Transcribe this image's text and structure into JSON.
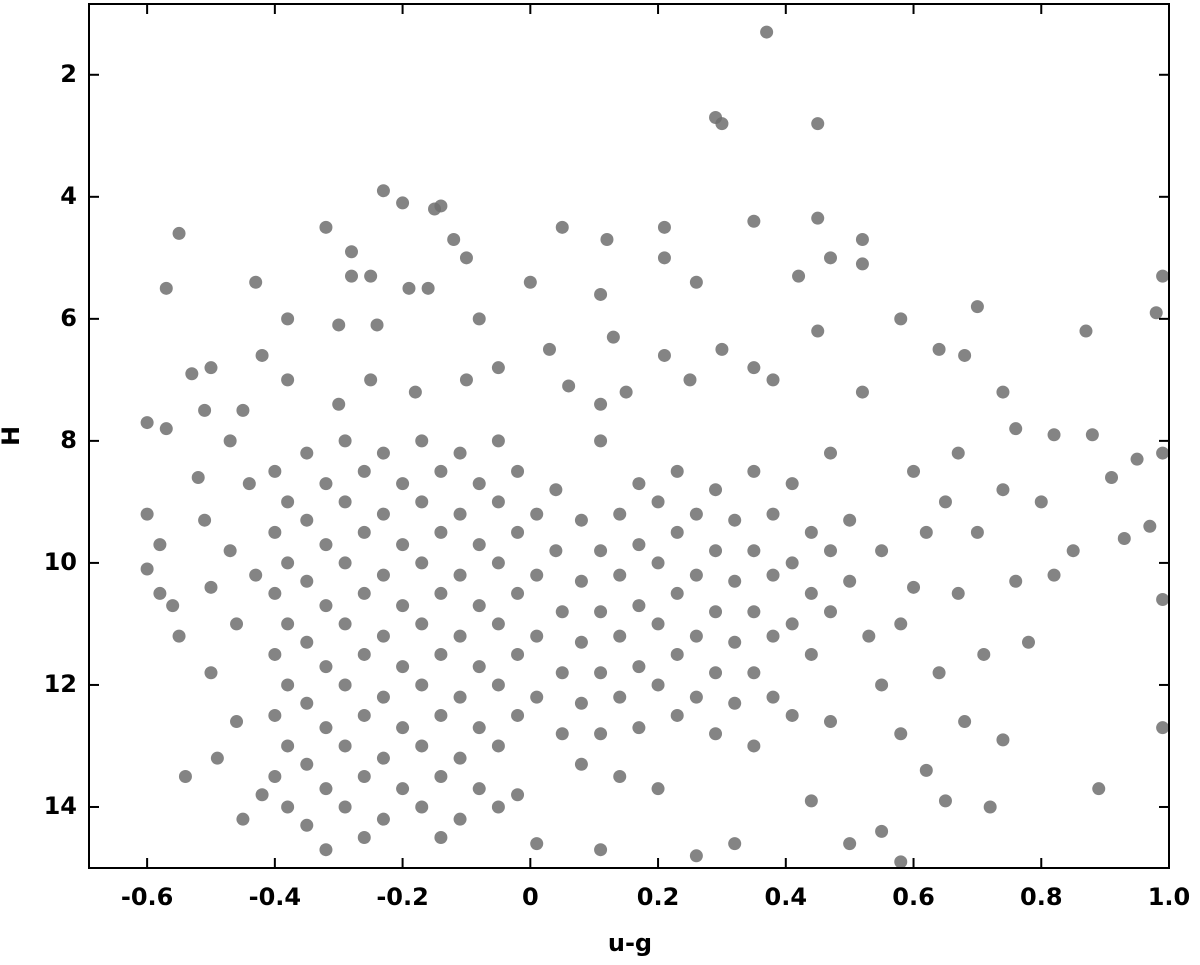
{
  "chart_data": {
    "type": "scatter",
    "xlabel": "u-g",
    "ylabel": "H",
    "xlim": [
      -0.691,
      1.0
    ],
    "ylim": [
      15,
      0.84
    ],
    "xticks": [
      -0.6,
      -0.4,
      -0.2,
      0,
      0.2,
      0.4,
      0.6,
      0.8,
      {
        "value": 1.0,
        "label": "1.0"
      }
    ],
    "yticks": [
      2,
      4,
      6,
      8,
      10,
      12,
      14
    ],
    "series": [
      {
        "color": "#6e6e6e",
        "x": [
          0.37,
          0.29,
          0.3,
          0.45,
          -0.23,
          -0.2,
          -0.15,
          -0.14,
          0.35,
          0.45,
          -0.55,
          -0.32,
          -0.12,
          0.12,
          0.21,
          0.05,
          0.52,
          -0.28,
          -0.1,
          0.21,
          -0.57,
          -0.43,
          -0.28,
          -0.25,
          -0.19,
          -0.16,
          0.0,
          0.11,
          0.26,
          0.42,
          0.47,
          0.52,
          0.99,
          0.98,
          0.87,
          0.7,
          0.58,
          0.45,
          0.3,
          0.13,
          -0.53,
          -0.5,
          -0.42,
          -0.38,
          -0.3,
          -0.24,
          -0.08,
          0.03,
          0.21,
          0.64,
          -0.6,
          -0.57,
          -0.51,
          -0.45,
          -0.38,
          -0.3,
          -0.25,
          -0.18,
          -0.1,
          -0.05,
          0.06,
          0.11,
          0.15,
          0.25,
          0.35,
          0.38,
          0.52,
          0.68,
          0.74,
          0.76,
          -0.6,
          -0.58,
          -0.6,
          -0.58,
          -0.56,
          -0.55,
          -0.54,
          -0.52,
          -0.51,
          -0.5,
          -0.5,
          -0.49,
          -0.47,
          -0.47,
          -0.46,
          -0.46,
          -0.45,
          -0.44,
          -0.43,
          -0.42,
          -0.4,
          -0.4,
          -0.4,
          -0.4,
          -0.4,
          -0.4,
          -0.38,
          -0.38,
          -0.38,
          -0.38,
          -0.38,
          -0.38,
          -0.35,
          -0.35,
          -0.35,
          -0.35,
          -0.35,
          -0.35,
          -0.35,
          -0.32,
          -0.32,
          -0.32,
          -0.32,
          -0.32,
          -0.32,
          -0.32,
          -0.29,
          -0.29,
          -0.29,
          -0.29,
          -0.29,
          -0.29,
          -0.29,
          -0.26,
          -0.26,
          -0.26,
          -0.26,
          -0.26,
          -0.26,
          -0.26,
          -0.23,
          -0.23,
          -0.23,
          -0.23,
          -0.23,
          -0.23,
          -0.23,
          -0.2,
          -0.2,
          -0.2,
          -0.2,
          -0.2,
          -0.2,
          -0.17,
          -0.17,
          -0.17,
          -0.17,
          -0.17,
          -0.17,
          -0.17,
          -0.14,
          -0.14,
          -0.14,
          -0.14,
          -0.14,
          -0.14,
          -0.14,
          -0.11,
          -0.11,
          -0.11,
          -0.11,
          -0.11,
          -0.11,
          -0.11,
          -0.08,
          -0.08,
          -0.08,
          -0.08,
          -0.08,
          -0.08,
          -0.05,
          -0.05,
          -0.05,
          -0.05,
          -0.05,
          -0.05,
          -0.05,
          -0.02,
          -0.02,
          -0.02,
          -0.02,
          -0.02,
          -0.02,
          0.01,
          0.01,
          0.01,
          0.01,
          0.01,
          0.04,
          0.04,
          0.05,
          0.05,
          0.05,
          0.08,
          0.08,
          0.08,
          0.08,
          0.08,
          0.11,
          0.11,
          0.11,
          0.11,
          0.11,
          0.11,
          0.14,
          0.14,
          0.14,
          0.14,
          0.14,
          0.17,
          0.17,
          0.17,
          0.17,
          0.17,
          0.2,
          0.2,
          0.2,
          0.2,
          0.2,
          0.23,
          0.23,
          0.23,
          0.23,
          0.23,
          0.26,
          0.26,
          0.26,
          0.26,
          0.26,
          0.29,
          0.29,
          0.29,
          0.29,
          0.29,
          0.32,
          0.32,
          0.32,
          0.32,
          0.32,
          0.35,
          0.35,
          0.35,
          0.35,
          0.35,
          0.38,
          0.38,
          0.38,
          0.38,
          0.41,
          0.41,
          0.41,
          0.41,
          0.44,
          0.44,
          0.44,
          0.44,
          0.47,
          0.47,
          0.47,
          0.47,
          0.5,
          0.5,
          0.5,
          0.53,
          0.55,
          0.55,
          0.55,
          0.58,
          0.58,
          0.58,
          0.6,
          0.6,
          0.62,
          0.62,
          0.64,
          0.65,
          0.65,
          0.67,
          0.67,
          0.68,
          0.7,
          0.71,
          0.72,
          0.74,
          0.74,
          0.76,
          0.78,
          0.8,
          0.82,
          0.85,
          0.88,
          0.89,
          0.91,
          0.93,
          0.95,
          0.97,
          0.99,
          0.99,
          0.99,
          0.82
        ],
        "y": [
          1.3,
          2.7,
          2.8,
          2.8,
          3.9,
          4.1,
          4.2,
          4.15,
          4.4,
          4.35,
          4.6,
          4.5,
          4.7,
          4.7,
          4.5,
          4.5,
          4.7,
          4.9,
          5.0,
          5.0,
          5.5,
          5.4,
          5.3,
          5.3,
          5.5,
          5.5,
          5.4,
          5.6,
          5.4,
          5.3,
          5.0,
          5.1,
          5.3,
          5.9,
          6.2,
          5.8,
          6.0,
          6.2,
          6.5,
          6.3,
          6.9,
          6.8,
          6.6,
          6.0,
          6.1,
          6.1,
          6.0,
          6.5,
          6.6,
          6.5,
          7.7,
          7.8,
          7.5,
          7.5,
          7.0,
          7.4,
          7.0,
          7.2,
          7.0,
          6.8,
          7.1,
          7.4,
          7.2,
          7.0,
          6.8,
          7.0,
          7.2,
          6.6,
          7.2,
          7.8,
          9.2,
          9.7,
          10.1,
          10.5,
          10.7,
          11.2,
          13.5,
          8.6,
          9.3,
          10.4,
          11.8,
          13.2,
          8.0,
          9.8,
          11.0,
          12.6,
          14.2,
          8.7,
          10.2,
          13.8,
          8.5,
          9.5,
          10.5,
          11.5,
          12.5,
          13.5,
          9.0,
          10.0,
          11.0,
          12.0,
          13.0,
          14.0,
          8.2,
          9.3,
          10.3,
          11.3,
          12.3,
          13.3,
          14.3,
          8.7,
          9.7,
          10.7,
          11.7,
          12.7,
          13.7,
          14.7,
          8.0,
          9.0,
          10.0,
          11.0,
          12.0,
          13.0,
          14.0,
          8.5,
          9.5,
          10.5,
          11.5,
          12.5,
          13.5,
          14.5,
          8.2,
          9.2,
          10.2,
          11.2,
          12.2,
          13.2,
          14.2,
          8.7,
          9.7,
          10.7,
          11.7,
          12.7,
          13.7,
          8.0,
          9.0,
          10.0,
          11.0,
          12.0,
          13.0,
          14.0,
          8.5,
          9.5,
          10.5,
          11.5,
          12.5,
          13.5,
          14.5,
          8.2,
          9.2,
          10.2,
          11.2,
          12.2,
          13.2,
          14.2,
          8.7,
          9.7,
          10.7,
          11.7,
          12.7,
          13.7,
          8.0,
          9.0,
          10.0,
          11.0,
          12.0,
          13.0,
          14.0,
          8.5,
          9.5,
          10.5,
          11.5,
          12.5,
          13.8,
          9.2,
          10.2,
          11.2,
          12.2,
          14.6,
          8.8,
          9.8,
          10.8,
          11.8,
          12.8,
          9.3,
          10.3,
          11.3,
          12.3,
          13.3,
          8.0,
          9.8,
          10.8,
          11.8,
          12.8,
          14.7,
          9.2,
          10.2,
          11.2,
          12.2,
          13.5,
          8.7,
          9.7,
          10.7,
          11.7,
          12.7,
          9.0,
          10.0,
          11.0,
          12.0,
          13.7,
          8.5,
          9.5,
          10.5,
          11.5,
          12.5,
          9.2,
          10.2,
          11.2,
          12.2,
          14.8,
          8.8,
          9.8,
          10.8,
          11.8,
          12.8,
          9.3,
          10.3,
          11.3,
          12.3,
          14.6,
          8.5,
          9.8,
          10.8,
          11.8,
          13.0,
          9.2,
          10.2,
          11.2,
          12.2,
          8.7,
          10.0,
          11.0,
          12.5,
          9.5,
          10.5,
          11.5,
          13.9,
          8.2,
          9.8,
          10.8,
          12.6,
          9.3,
          10.3,
          14.6,
          11.2,
          9.8,
          12.0,
          14.4,
          11.0,
          12.8,
          14.9,
          8.5,
          10.4,
          9.5,
          13.4,
          11.8,
          9.0,
          13.9,
          8.2,
          10.5,
          12.6,
          9.5,
          11.5,
          14.0,
          8.8,
          12.9,
          10.3,
          11.3,
          9.0,
          10.2,
          9.8,
          7.9,
          13.7,
          8.6,
          9.6,
          8.3,
          9.4,
          10.6,
          12.7,
          8.2,
          7.9
        ]
      }
    ]
  }
}
